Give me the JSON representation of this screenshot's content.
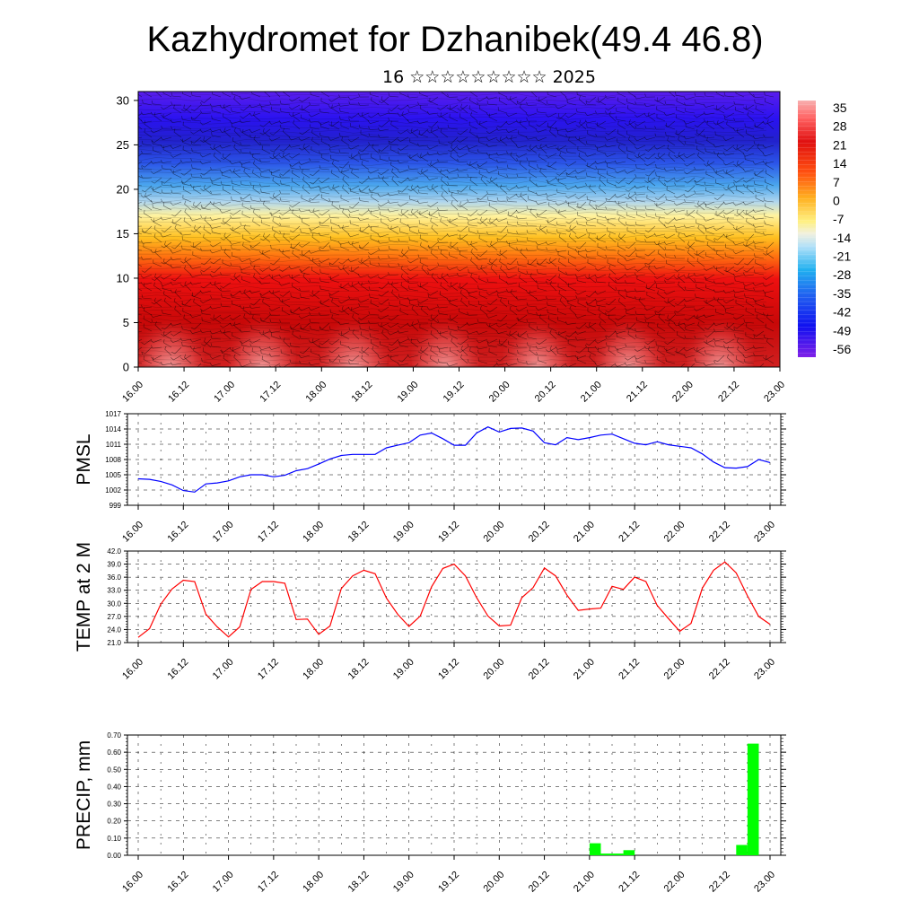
{
  "title": "Kazhydromet for Dzhanibek(49.4 46.8)",
  "subtitle": "16 ☆☆☆☆☆☆☆☆☆ 2025",
  "chart_data": [
    {
      "type": "heatmap",
      "name": "cross-section",
      "ylim": [
        0,
        31
      ],
      "y_ticks": [
        "0",
        "5",
        "10",
        "15",
        "20",
        "25",
        "30"
      ],
      "x_ticks": [
        "16.00",
        "16.12",
        "17.00",
        "17.12",
        "18.00",
        "18.12",
        "19.00",
        "19.12",
        "20.00",
        "20.12",
        "21.00",
        "21.12",
        "22.00",
        "22.12",
        "23.00"
      ],
      "colorbar_labels": [
        "35",
        "28",
        "21",
        "14",
        "7",
        "0",
        "-7",
        "-14",
        "-21",
        "-28",
        "-35",
        "-42",
        "-49",
        "-56"
      ],
      "layers": [
        {
          "y_top": 31,
          "y_bottom": 27,
          "value": -58
        },
        {
          "y_top": 27,
          "y_bottom": 23,
          "value": -52
        },
        {
          "y_top": 23,
          "y_bottom": 20,
          "value": -35
        },
        {
          "y_top": 20,
          "y_bottom": 17.5,
          "value": -20
        },
        {
          "y_top": 17.5,
          "y_bottom": 14,
          "value": -10
        },
        {
          "y_top": 14,
          "y_bottom": 11,
          "value": 5
        },
        {
          "y_top": 11,
          "y_bottom": 5,
          "value": 20
        },
        {
          "y_top": 5,
          "y_bottom": 0,
          "value": 26
        }
      ],
      "overlay": "wind barbs"
    },
    {
      "type": "line",
      "name": "pmsl",
      "ylabel": "PMSL",
      "ylim": [
        999,
        1017
      ],
      "y_ticks": [
        "999",
        "1002",
        "1005",
        "1008",
        "1011",
        "1014",
        "1017"
      ],
      "x_ticks": [
        "16.00",
        "16.12",
        "17.00",
        "17.12",
        "18.00",
        "18.12",
        "19.00",
        "19.12",
        "20.00",
        "20.12",
        "21.00",
        "21.12",
        "22.00",
        "22.12",
        "23.00"
      ],
      "x_hours": [
        0,
        3,
        6,
        9,
        12,
        15,
        18,
        21,
        24,
        27,
        30,
        33,
        36,
        39,
        42,
        45,
        48,
        51,
        54,
        57,
        60,
        63,
        66,
        69,
        72,
        75,
        78,
        81,
        84,
        87,
        90,
        93,
        96,
        99,
        102,
        105,
        108,
        111,
        114,
        117,
        120,
        123,
        126,
        129,
        132,
        135,
        138,
        141,
        144,
        147,
        150,
        153,
        156,
        159,
        162,
        165,
        168
      ],
      "values": [
        1004.2,
        1004.1,
        1003.7,
        1003,
        1001.9,
        1001.6,
        1003.2,
        1003.4,
        1003.8,
        1004.6,
        1005,
        1005,
        1004.6,
        1004.9,
        1005.8,
        1006.2,
        1007.1,
        1008.1,
        1008.8,
        1009,
        1009,
        1009,
        1010.3,
        1010.8,
        1011.3,
        1012.8,
        1013.2,
        1012.1,
        1010.8,
        1010.8,
        1013.2,
        1014.4,
        1013.4,
        1014.1,
        1014.2,
        1013.6,
        1011.3,
        1010.9,
        1012.3,
        1011.9,
        1012.3,
        1012.8,
        1013,
        1012.1,
        1011.2,
        1010.9,
        1011.5,
        1010.9,
        1010.6,
        1010.3,
        1009.1,
        1007.5,
        1006.4,
        1006.3,
        1006.6,
        1008,
        1007.4
      ],
      "color": "#0000ff"
    },
    {
      "type": "line",
      "name": "temp",
      "ylabel": "TEMP at 2 M",
      "ylim": [
        21,
        42
      ],
      "y_ticks": [
        "21.0",
        "24.0",
        "27.0",
        "30.0",
        "33.0",
        "36.0",
        "39.0",
        "42.0"
      ],
      "x_ticks": [
        "16.00",
        "16.12",
        "17.00",
        "17.12",
        "18.00",
        "18.12",
        "19.00",
        "19.12",
        "20.00",
        "20.12",
        "21.00",
        "21.12",
        "22.00",
        "22.12",
        "23.00"
      ],
      "x_hours": [
        0,
        3,
        6,
        9,
        12,
        15,
        18,
        21,
        24,
        27,
        30,
        33,
        36,
        39,
        42,
        45,
        48,
        51,
        54,
        57,
        60,
        63,
        66,
        69,
        72,
        75,
        78,
        81,
        84,
        87,
        90,
        93,
        96,
        99,
        102,
        105,
        108,
        111,
        114,
        117,
        120,
        123,
        126,
        129,
        132,
        135,
        138,
        141,
        144,
        147,
        150,
        153,
        156,
        159,
        162,
        165,
        168
      ],
      "values": [
        22.2,
        24.2,
        29.8,
        33.3,
        35.3,
        35,
        27.5,
        24.6,
        22.3,
        24.6,
        33.2,
        35,
        35,
        34.6,
        26.3,
        26.4,
        22.9,
        24.8,
        33.4,
        36.3,
        37.6,
        36.8,
        31.2,
        27.5,
        24.7,
        27.1,
        33.8,
        38,
        39,
        36.3,
        31.3,
        27.1,
        24.8,
        25,
        31.3,
        33.6,
        38.1,
        36.3,
        31.9,
        28.4,
        28.7,
        28.9,
        33.9,
        33.2,
        36,
        35,
        29.5,
        26.5,
        23.6,
        25.4,
        33.5,
        37.6,
        39.5,
        37,
        31.7,
        27,
        25.2
      ],
      "color": "#ff0000"
    },
    {
      "type": "bar",
      "name": "precip",
      "ylabel": "PRECIP, mm",
      "ylim": [
        0,
        0.7
      ],
      "y_ticks": [
        "0.00",
        "0.10",
        "0.20",
        "0.30",
        "0.40",
        "0.50",
        "0.60",
        "0.70"
      ],
      "x_ticks": [
        "16.00",
        "16.12",
        "17.00",
        "17.12",
        "18.00",
        "18.12",
        "19.00",
        "19.12",
        "20.00",
        "20.12",
        "21.00",
        "21.12",
        "22.00",
        "22.12",
        "23.00"
      ],
      "bars": [
        {
          "start_hour": 120,
          "end_hour": 123,
          "value": 0.07
        },
        {
          "start_hour": 123,
          "end_hour": 126,
          "value": 0.01
        },
        {
          "start_hour": 126,
          "end_hour": 129,
          "value": 0.01
        },
        {
          "start_hour": 129,
          "end_hour": 132,
          "value": 0.03
        },
        {
          "start_hour": 159,
          "end_hour": 162,
          "value": 0.06
        },
        {
          "start_hour": 162,
          "end_hour": 165,
          "value": 0.65
        }
      ],
      "color": "#00ff00"
    }
  ]
}
